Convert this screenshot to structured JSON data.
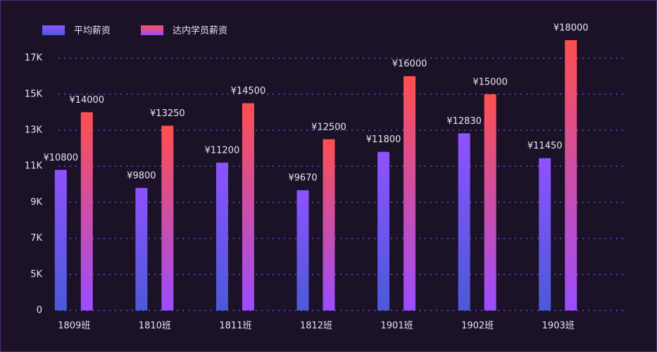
{
  "chart_data": {
    "type": "bar",
    "categories": [
      "1809班",
      "1810班",
      "1811班",
      "1812班",
      "1901班",
      "1902班",
      "1903班"
    ],
    "series": [
      {
        "name": "平均薪资",
        "colors": [
          "#8f52ff",
          "#4a5ad8"
        ],
        "values": [
          10800,
          9800,
          11200,
          9670,
          11800,
          12830,
          11450
        ],
        "value_labels": [
          "¥10800",
          "¥9800",
          "¥11200",
          "¥9670",
          "¥11800",
          "¥12830",
          "¥11450"
        ]
      },
      {
        "name": "达内学员薪资",
        "colors": [
          "#ff4f4f",
          "#9a4dff"
        ],
        "values": [
          14000,
          13250,
          14500,
          12500,
          16000,
          15000,
          18000
        ],
        "value_labels": [
          "¥14000",
          "¥13250",
          "¥14500",
          "¥12500",
          "¥16000",
          "¥15000",
          "¥18000"
        ]
      }
    ],
    "ylim": [
      0,
      18000
    ],
    "yticks": [
      0,
      {
        "value": 5000,
        "label": "5K"
      },
      {
        "value": 7000,
        "label": "7K"
      },
      {
        "value": 9000,
        "label": "9K"
      },
      {
        "value": 11000,
        "label": "11K"
      },
      {
        "value": 13000,
        "label": "13K"
      },
      {
        "value": 15000,
        "label": "15K"
      },
      {
        "value": 17000,
        "label": "17K"
      }
    ],
    "grid": true,
    "legend": "top-left"
  }
}
